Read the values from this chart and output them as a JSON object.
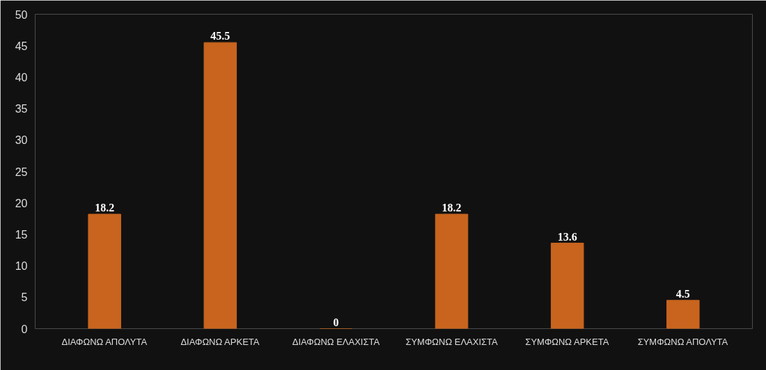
{
  "chart_data": {
    "type": "bar",
    "categories": [
      "ΔΙΑΦΩΝΩ ΑΠΟΛΥΤΑ",
      "ΔΙΑΦΩΝΩ ΑΡΚΕΤΑ",
      "ΔΙΑΦΩΝΩ ΕΛΑΧΙΣΤΑ",
      "ΣΥΜΦΩΝΩ ΕΛΑΧΙΣΤΑ",
      "ΣΥΜΦΩΝΩ ΑΡΚΕΤΑ",
      "ΣΥΜΦΩΝΩ ΑΠΟΛΥΤΑ"
    ],
    "values": [
      18.2,
      45.5,
      0,
      18.2,
      13.6,
      4.5
    ],
    "color": "#c8641e",
    "ylim": [
      0,
      50
    ],
    "yticks": [
      0,
      5,
      10,
      15,
      20,
      25,
      30,
      35,
      40,
      45,
      50
    ],
    "grid": false,
    "data_labels": true
  }
}
